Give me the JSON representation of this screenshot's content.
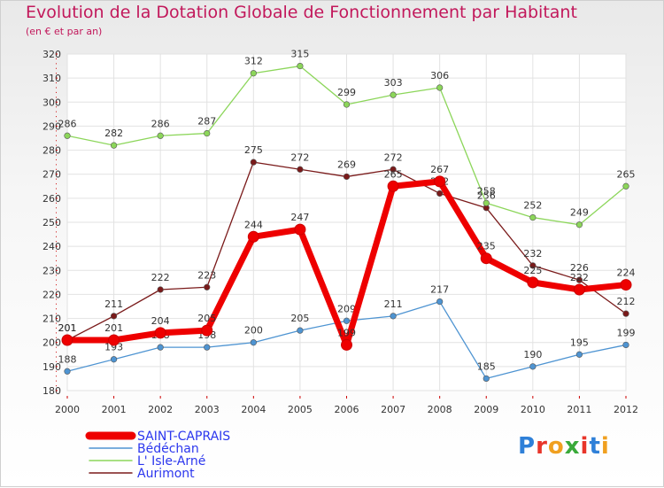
{
  "title": "Evolution de la Dotation Globale de Fonctionnement par Habitant",
  "subtitle": "(en € et par an)",
  "logo": "Proxiti",
  "chart_data": {
    "type": "line",
    "x": [
      "2000",
      "2001",
      "2002",
      "2003",
      "2004",
      "2005",
      "2006",
      "2007",
      "2008",
      "2009",
      "2010",
      "2011",
      "2012"
    ],
    "ylim": [
      180,
      320
    ],
    "yticks": [
      180,
      190,
      200,
      210,
      220,
      230,
      240,
      250,
      260,
      270,
      280,
      290,
      300,
      310,
      320
    ],
    "grid": true,
    "legend_position": "bottom-left",
    "series": [
      {
        "name": "SAINT-CAPRAIS",
        "color": "#ee0000",
        "values": [
          201,
          201,
          204,
          205,
          244,
          247,
          199,
          265,
          267,
          235,
          225,
          222,
          224
        ]
      },
      {
        "name": "Bédéchan",
        "color": "#4e94d2",
        "values": [
          188,
          193,
          198,
          198,
          200,
          205,
          209,
          211,
          217,
          185,
          190,
          195,
          199
        ]
      },
      {
        "name": "L' Isle-Arné",
        "color": "#8cd65a",
        "values": [
          286,
          282,
          286,
          287,
          312,
          315,
          299,
          303,
          306,
          258,
          252,
          249,
          265
        ]
      },
      {
        "name": "Aurimont",
        "color": "#7a1a1a",
        "values": [
          201,
          211,
          222,
          223,
          275,
          272,
          269,
          272,
          262,
          256,
          232,
          226,
          212
        ]
      }
    ]
  }
}
